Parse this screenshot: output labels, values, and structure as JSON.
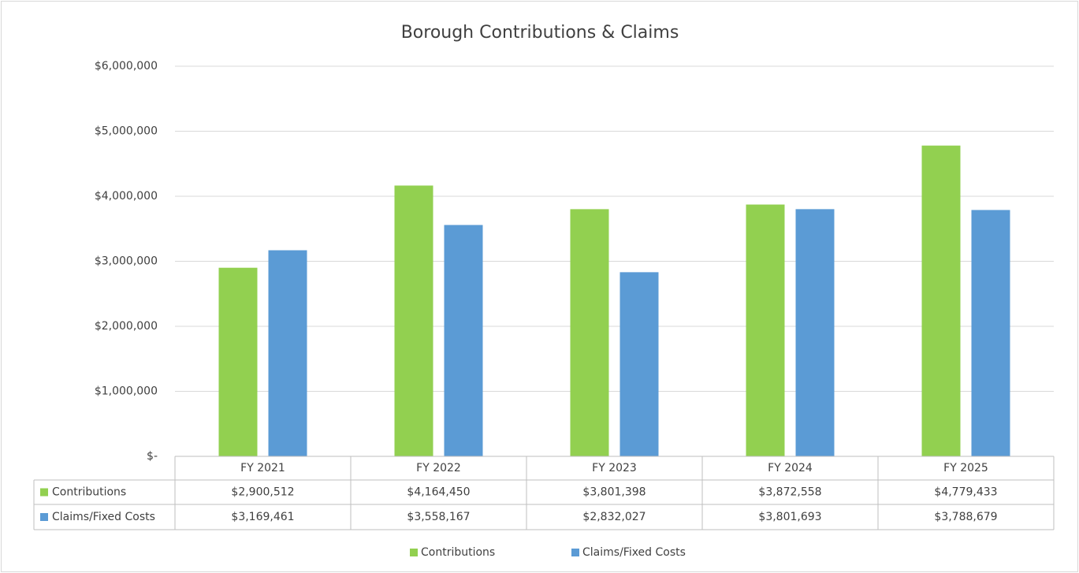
{
  "chart_data": {
    "type": "bar",
    "title": "Borough Contributions & Claims",
    "categories": [
      "FY 2021",
      "FY 2022",
      "FY 2023",
      "FY 2024",
      "FY 2025"
    ],
    "series": [
      {
        "name": "Contributions",
        "color": "#92d050",
        "values": [
          2900512,
          4164450,
          3801398,
          3872558,
          4779433
        ],
        "value_labels": [
          "$2,900,512",
          "$4,164,450",
          "$3,801,398",
          "$3,872,558",
          "$4,779,433"
        ]
      },
      {
        "name": "Claims/Fixed Costs",
        "color": "#5b9bd5",
        "values": [
          3169461,
          3558167,
          2832027,
          3801693,
          3788679
        ],
        "value_labels": [
          "$3,169,461",
          "$3,558,167",
          "$2,832,027",
          "$3,801,693",
          "$3,788,679"
        ]
      }
    ],
    "ylim": [
      0,
      6000000
    ],
    "yticks": [
      {
        "value": 0,
        "label": "$-"
      },
      {
        "value": 1000000,
        "label": "$1,000,000"
      },
      {
        "value": 2000000,
        "label": "$2,000,000"
      },
      {
        "value": 3000000,
        "label": "$3,000,000"
      },
      {
        "value": 4000000,
        "label": "$4,000,000"
      },
      {
        "value": 5000000,
        "label": "$5,000,000"
      },
      {
        "value": 6000000,
        "label": "$6,000,000"
      }
    ],
    "grid": true,
    "legend": "bottom"
  }
}
